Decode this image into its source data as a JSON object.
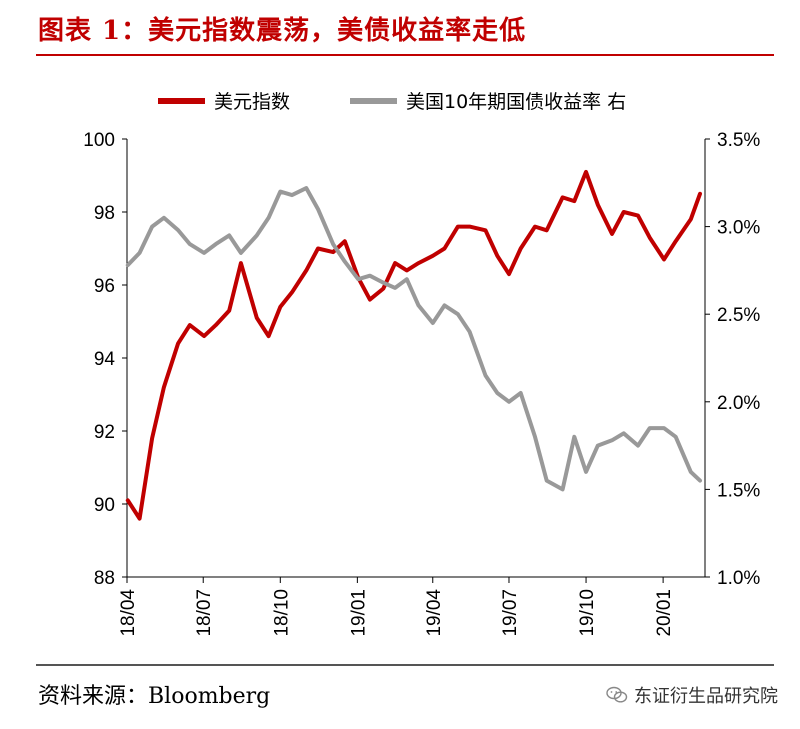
{
  "header": {
    "title": "图表 1：美元指数震荡，美债收益率走低"
  },
  "footer": {
    "source": "资料来源：Bloomberg",
    "watermark": "东证衍生品研究院"
  },
  "colors": {
    "accent": "#c00000",
    "series1": "#c00000",
    "series2": "#999999"
  },
  "chart_data": {
    "type": "line",
    "title": "",
    "x_ticks": [
      "18/04",
      "18/07",
      "18/10",
      "19/01",
      "19/04",
      "19/07",
      "19/10",
      "20/01"
    ],
    "y_left": {
      "ticks": [
        "88",
        "90",
        "92",
        "94",
        "96",
        "98",
        "100"
      ],
      "ylim": [
        88,
        100
      ]
    },
    "y_right": {
      "ticks": [
        "1.0%",
        "1.5%",
        "2.0%",
        "2.5%",
        "3.0%",
        "3.5%"
      ],
      "ylim": [
        1.0,
        3.5
      ]
    },
    "grid": false,
    "legend_position": "top",
    "x": [
      "2018-04-02",
      "2018-04-16",
      "2018-05-01",
      "2018-05-15",
      "2018-06-01",
      "2018-06-15",
      "2018-07-02",
      "2018-07-16",
      "2018-08-01",
      "2018-08-15",
      "2018-09-03",
      "2018-09-17",
      "2018-10-01",
      "2018-10-15",
      "2018-11-01",
      "2018-11-15",
      "2018-12-03",
      "2018-12-17",
      "2019-01-02",
      "2019-01-16",
      "2019-02-01",
      "2019-02-15",
      "2019-03-01",
      "2019-03-15",
      "2019-04-01",
      "2019-04-15",
      "2019-05-01",
      "2019-05-15",
      "2019-06-03",
      "2019-06-17",
      "2019-07-01",
      "2019-07-15",
      "2019-08-01",
      "2019-08-15",
      "2019-09-03",
      "2019-09-17",
      "2019-10-01",
      "2019-10-15",
      "2019-11-01",
      "2019-11-15",
      "2019-12-02",
      "2019-12-16",
      "2020-01-02",
      "2020-01-16",
      "2020-02-03",
      "2020-02-14"
    ],
    "series": [
      {
        "name": "美元指数",
        "axis": "left",
        "values": [
          90.1,
          89.6,
          91.8,
          93.2,
          94.4,
          94.9,
          94.6,
          94.9,
          95.3,
          96.6,
          95.1,
          94.6,
          95.4,
          95.8,
          96.4,
          97.0,
          96.9,
          97.2,
          96.2,
          95.6,
          95.9,
          96.6,
          96.4,
          96.6,
          96.8,
          97.0,
          97.6,
          97.6,
          97.5,
          96.8,
          96.3,
          97.0,
          97.6,
          97.5,
          98.4,
          98.3,
          99.1,
          98.2,
          97.4,
          98.0,
          97.9,
          97.3,
          96.7,
          97.2,
          97.8,
          98.5
        ]
      },
      {
        "name": "美国10年期国债收益率 右",
        "axis": "right",
        "values": [
          2.78,
          2.85,
          3.0,
          3.05,
          2.98,
          2.9,
          2.85,
          2.9,
          2.95,
          2.85,
          2.95,
          3.05,
          3.2,
          3.18,
          3.22,
          3.1,
          2.9,
          2.8,
          2.7,
          2.72,
          2.68,
          2.65,
          2.7,
          2.55,
          2.45,
          2.55,
          2.5,
          2.4,
          2.15,
          2.05,
          2.0,
          2.05,
          1.8,
          1.55,
          1.5,
          1.8,
          1.6,
          1.75,
          1.78,
          1.82,
          1.75,
          1.85,
          1.85,
          1.8,
          1.6,
          1.55
        ]
      }
    ]
  }
}
